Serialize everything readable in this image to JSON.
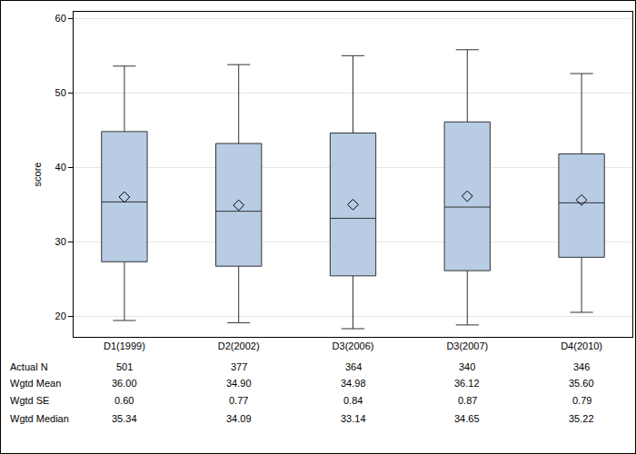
{
  "chart_data": {
    "type": "box",
    "ylabel": "score",
    "categories": [
      "D1(1999)",
      "D2(2002)",
      "D3(2006)",
      "D3(2007)",
      "D4(2010)"
    ],
    "lower": [
      19.4,
      19.1,
      18.3,
      18.8,
      20.5
    ],
    "q1": [
      27.3,
      26.7,
      25.4,
      26.1,
      27.9
    ],
    "median": [
      35.34,
      34.09,
      33.14,
      34.65,
      35.22
    ],
    "q3": [
      44.8,
      43.2,
      44.6,
      46.1,
      41.8
    ],
    "upper": [
      53.6,
      53.8,
      55.0,
      55.8,
      52.6
    ],
    "mean": [
      36.0,
      34.9,
      34.98,
      36.12,
      35.6
    ],
    "color": "#b8cce4",
    "marker": "diamond",
    "ylim": [
      17.2,
      60.9
    ],
    "yticks": [
      20,
      30,
      40,
      50,
      60
    ],
    "grid": true,
    "table": {
      "rows": [
        {
          "label": "Actual N",
          "values": [
            "501",
            "377",
            "364",
            "340",
            "346"
          ]
        },
        {
          "label": "Wgtd Mean",
          "values": [
            "36.00",
            "34.90",
            "34.98",
            "36.12",
            "35.60"
          ]
        },
        {
          "label": "Wgtd SE",
          "values": [
            "0.60",
            "0.77",
            "0.84",
            "0.87",
            "0.79"
          ]
        },
        {
          "label": "Wgtd Median",
          "values": [
            "35.34",
            "34.09",
            "33.14",
            "34.65",
            "35.22"
          ]
        }
      ]
    }
  }
}
